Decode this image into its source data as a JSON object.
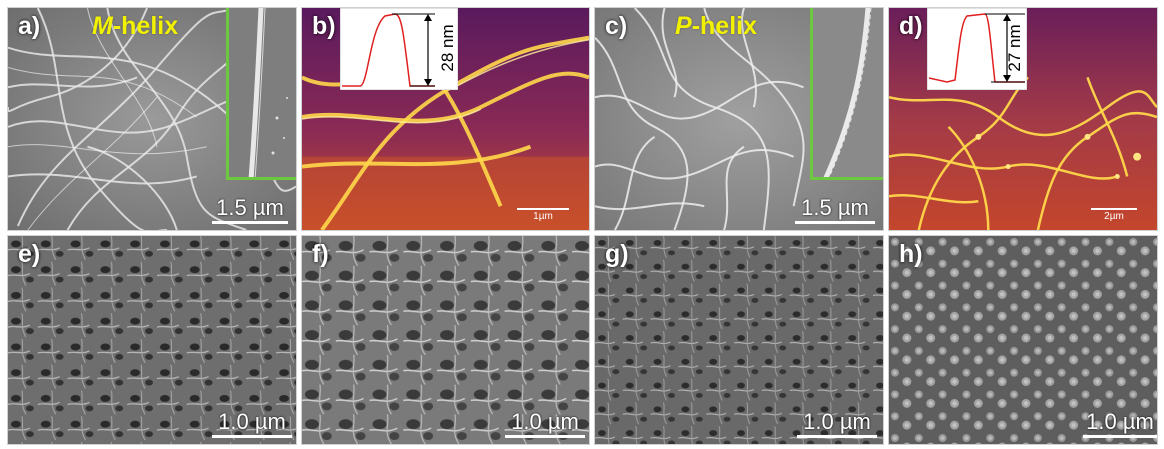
{
  "panels": {
    "a": {
      "label": "a)",
      "helix_prefix": "M",
      "helix_suffix": "-helix",
      "scale": "1.5 µm"
    },
    "b": {
      "label": "b)",
      "height": "28 nm",
      "scale": "1µm"
    },
    "c": {
      "label": "c)",
      "helix_prefix": "P",
      "helix_suffix": "-helix",
      "scale": "1.5 µm"
    },
    "d": {
      "label": "d)",
      "height": "27 nm",
      "scale": "2µm"
    },
    "e": {
      "label": "e)",
      "scale": "1.0 µm"
    },
    "f": {
      "label": "f)",
      "scale": "1.0 µm"
    },
    "g": {
      "label": "g)",
      "scale": "1.0 µm"
    },
    "h": {
      "label": "h)",
      "scale": "1.0 µm"
    }
  },
  "colors": {
    "helix_label": "#f2f200",
    "inset_border": "#6cc83c",
    "profile_line": "#e02020",
    "afm_dark": "#5a1a5e",
    "afm_mid": "#c8502a",
    "afm_bright": "#ffd84a",
    "sem_gray": "#8a8a8a"
  }
}
